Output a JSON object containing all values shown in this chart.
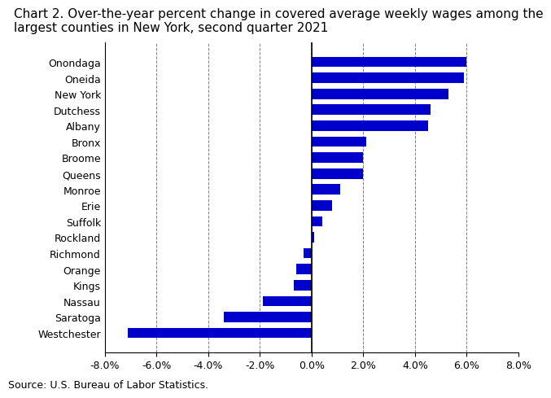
{
  "title_line1": "Chart 2. Over-the-year percent change in covered average weekly wages among the",
  "title_line2": "largest counties in New York, second quarter 2021",
  "categories": [
    "Onondaga",
    "Oneida",
    "New York",
    "Dutchess",
    "Albany",
    "Bronx",
    "Broome",
    "Queens",
    "Monroe",
    "Erie",
    "Suffolk",
    "Rockland",
    "Richmond",
    "Orange",
    "Kings",
    "Nassau",
    "Saratoga",
    "Westchester"
  ],
  "values": [
    6.0,
    5.9,
    5.3,
    4.6,
    4.5,
    2.1,
    2.0,
    2.0,
    1.1,
    0.8,
    0.4,
    0.1,
    -0.3,
    -0.6,
    -0.7,
    -1.9,
    -3.4,
    -7.1
  ],
  "bar_color": "#0000cc",
  "xlim": [
    -8.0,
    8.0
  ],
  "xtick_values": [
    -8.0,
    -6.0,
    -4.0,
    -2.0,
    0.0,
    2.0,
    4.0,
    6.0,
    8.0
  ],
  "source": "Source: U.S. Bureau of Labor Statistics.",
  "title_fontsize": 11,
  "tick_fontsize": 9,
  "source_fontsize": 9,
  "bar_height": 0.65
}
